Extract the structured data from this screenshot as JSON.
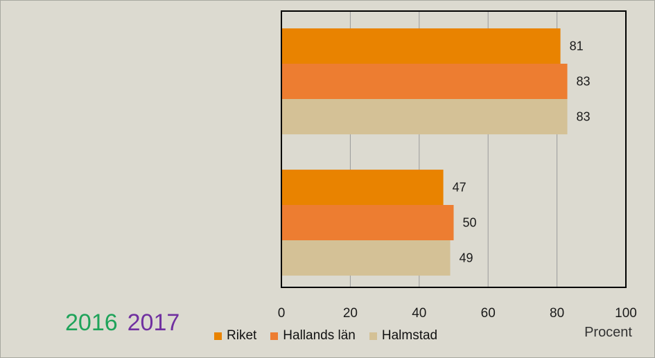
{
  "chart_data": {
    "type": "bar",
    "orientation": "horizontal",
    "categories": [
      "",
      ""
    ],
    "series": [
      {
        "name": "Riket",
        "color": "#e98300",
        "values": [
          81,
          47
        ]
      },
      {
        "name": "Hallands län",
        "color": "#ed7d31",
        "values": [
          83,
          50
        ]
      },
      {
        "name": "Halmstad",
        "color": "#d4c196",
        "values": [
          83,
          49
        ]
      }
    ],
    "xlabel": "Procent",
    "xlim": [
      0,
      100
    ],
    "xticks": [
      0,
      20,
      40,
      60,
      80,
      100
    ],
    "grid": true,
    "legend": "bottom"
  },
  "years": [
    {
      "label": "2016",
      "color": "#1fa35a"
    },
    {
      "label": "2017",
      "color": "#7030a0"
    }
  ]
}
